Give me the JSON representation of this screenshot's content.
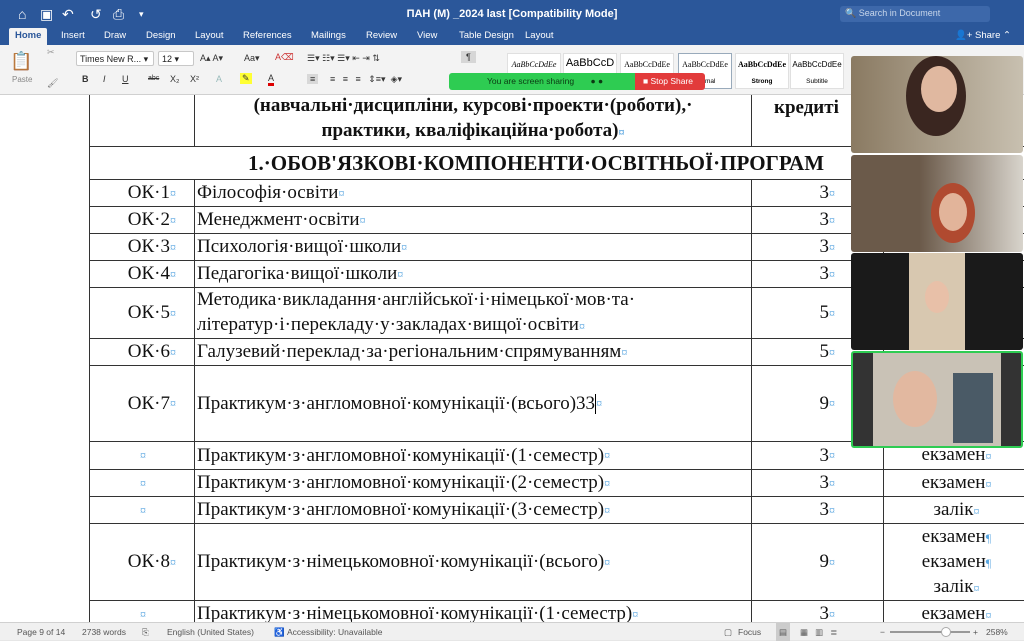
{
  "titlebar": {
    "title": "ПАН (М) _2024 last [Compatibility Mode]",
    "search_placeholder": "Search in Document",
    "icons": [
      "home-icon",
      "save-icon",
      "undo-icon",
      "redo-icon",
      "print-icon",
      "customize-icon"
    ]
  },
  "tabs": [
    "Home",
    "Insert",
    "Draw",
    "Design",
    "Layout",
    "References",
    "Mailings",
    "Review",
    "View",
    "Table Design",
    "Layout"
  ],
  "active_tab": "Home",
  "share_label": "Share",
  "ribbon": {
    "paste": "Paste",
    "font": "Times New R...",
    "size": "12",
    "styles": [
      {
        "preview": "AaBbCcDdEe",
        "name": ""
      },
      {
        "preview": "AaBbCcD",
        "name": ""
      },
      {
        "preview": "AaBbCcDdEe",
        "name": ""
      },
      {
        "preview": "AaBbCcDdEe",
        "name": "Normal"
      },
      {
        "preview": "AaBbCcDdEe",
        "name": "Strong"
      },
      {
        "preview": "AaBbCcDdEe",
        "name": "Subtitle"
      }
    ]
  },
  "screen_share": {
    "status": "You are screen sharing",
    "stop": "Stop Share",
    "color": "#2ecc52",
    "stop_color": "#e23b3b"
  },
  "table": {
    "header": {
      "subject": "(навчальні·дисципліни, курсові·проекти·(роботи),·",
      "subject2": "практики, кваліфікаційна·робота)",
      "credits": "кредиті"
    },
    "section": "1.·ОБОВ'ЯЗКОВІ·КОМПОНЕНТИ·ОСВІТНЬОЇ·ПРОГРАМ",
    "rows": [
      {
        "code": "ОК·1",
        "name": "Філософія·освіти",
        "credits": "3",
        "control": ""
      },
      {
        "code": "ОК·2",
        "name": "Менеджмент·освіти",
        "credits": "3",
        "control": ""
      },
      {
        "code": "ОК·3",
        "name": "Психологія·вищої·школи",
        "credits": "3",
        "control": ""
      },
      {
        "code": "ОК·4",
        "name": "Педагогіка·вищої·школи",
        "credits": "3",
        "control": ""
      },
      {
        "code": "ОК·5",
        "name": "Методика·викладання·англійської·і·німецької·мов·та·",
        "name2": "літератур·і·перекладу·у·закладах·вищої·освіти",
        "credits": "5",
        "control": ""
      },
      {
        "code": "ОК·6",
        "name": "Галузевий·переклад·за·регіональним·спрямуванням",
        "credits": "5",
        "control": ""
      },
      {
        "code": "ОК·7",
        "name": "Практикум·з·англомовної·комунікації·(всього)33",
        "credits": "9",
        "control": ""
      },
      {
        "code": "",
        "name": "Практикум·з·англомовної·комунікації·(1·семестр)",
        "credits": "3",
        "control": "екзамен"
      },
      {
        "code": "",
        "name": "Практикум·з·англомовної·комунікації·(2·семестр)",
        "credits": "3",
        "control": "екзамен"
      },
      {
        "code": "",
        "name": "Практикум·з·англомовної·комунікації·(3·семестр)",
        "credits": "3",
        "control": "залік"
      },
      {
        "code": "ОК·8",
        "name": "Практикум·з·німецькомовної·комунікації·(всього)",
        "credits": "9",
        "control": "екзамен",
        "control2": "екзамен",
        "control3": "залік"
      },
      {
        "code": "",
        "name": "Практикум·з·німецькомовної·комунікації·(1·семестр)",
        "credits": "3",
        "control": "екзамен"
      }
    ]
  },
  "status": {
    "page": "Page 9 of 14",
    "words": "2738 words",
    "language": "English (United States)",
    "accessibility": "Accessibility: Unavailable",
    "focus": "Focus",
    "zoom": "258%",
    "zoom_slider": 0.7
  }
}
